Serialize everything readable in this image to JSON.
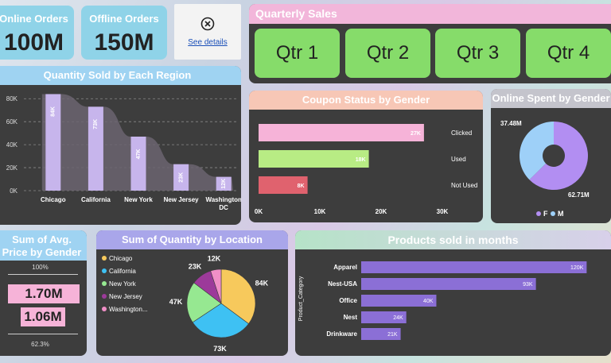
{
  "kpis": {
    "online": {
      "label": "Online Orders",
      "value": "100M"
    },
    "offline": {
      "label": "Offline Orders",
      "value": "150M"
    }
  },
  "details": {
    "link": "See details",
    "icon": "close-circle-icon"
  },
  "quarterly": {
    "title": "Quarterly Sales",
    "buttons": [
      "Qtr 1",
      "Qtr 2",
      "Qtr 3",
      "Qtr 4"
    ]
  },
  "chart_data": [
    {
      "id": "region",
      "type": "bar",
      "title": "Quantity Sold by Each Region",
      "categories": [
        "Chicago",
        "California",
        "New York",
        "New Jersey",
        "Washington DC"
      ],
      "category_lines": [
        [
          "Chicago"
        ],
        [
          "California"
        ],
        [
          "New York"
        ],
        [
          "New Jersey"
        ],
        [
          "Washington",
          "DC"
        ]
      ],
      "values": [
        84,
        73,
        47,
        23,
        12
      ],
      "data_labels": [
        "84K",
        "73K",
        "47K",
        "23K",
        "12K"
      ],
      "yticks": [
        "0K",
        "20K",
        "40K",
        "60K",
        "80K"
      ],
      "ylim": [
        0,
        85
      ],
      "color": "#c7b5ec",
      "grid": true
    },
    {
      "id": "coupon",
      "type": "bar",
      "orientation": "horizontal",
      "title": "Coupon Status by Gender",
      "categories": [
        "Clicked",
        "Used",
        "Not Used"
      ],
      "values": [
        27,
        18,
        8
      ],
      "data_labels": [
        "27K",
        "18K",
        "8K"
      ],
      "colors": [
        "#f6b3d8",
        "#b8ec84",
        "#e0626e"
      ],
      "xticks": [
        "0K",
        "10K",
        "20K",
        "30K"
      ],
      "xlim": [
        0,
        30
      ]
    },
    {
      "id": "online_spent",
      "type": "pie",
      "donut": true,
      "title": "Online Spent by Gender",
      "labels": [
        "F",
        "M"
      ],
      "values": [
        62.71,
        37.48
      ],
      "data_labels": [
        "62.71M",
        "37.48M"
      ],
      "colors": [
        "#b28ef2",
        "#9ed0f8"
      ]
    },
    {
      "id": "avg_price",
      "type": "table",
      "title": "Sum of Avg. Price by Gender",
      "top_label": "100%",
      "values": [
        "1.70M",
        "1.06M"
      ],
      "bottom_label": "62.3%"
    },
    {
      "id": "location",
      "type": "pie",
      "title": "Sum of Quantity by Location",
      "labels": [
        "Chicago",
        "California",
        "New York",
        "New Jersey",
        "Washington..."
      ],
      "values": [
        84,
        73,
        47,
        23,
        12
      ],
      "data_labels": [
        "84K",
        "73K",
        "47K",
        "23K",
        "12K"
      ],
      "colors": [
        "#f7c95c",
        "#3ec1f3",
        "#96e891",
        "#9c3a9a",
        "#f08fc7"
      ],
      "legend": "left"
    },
    {
      "id": "months",
      "type": "bar",
      "orientation": "horizontal",
      "title": "Products sold in months",
      "ylabel": "Product_Category",
      "categories": [
        "Apparel",
        "Nest-USA",
        "Office",
        "Nest",
        "Drinkware"
      ],
      "values": [
        120,
        93,
        40,
        24,
        21
      ],
      "data_labels": [
        "120K",
        "93K",
        "40K",
        "24K",
        "21K"
      ],
      "xlim": [
        0,
        130
      ],
      "color": "#8b6fd6"
    }
  ]
}
